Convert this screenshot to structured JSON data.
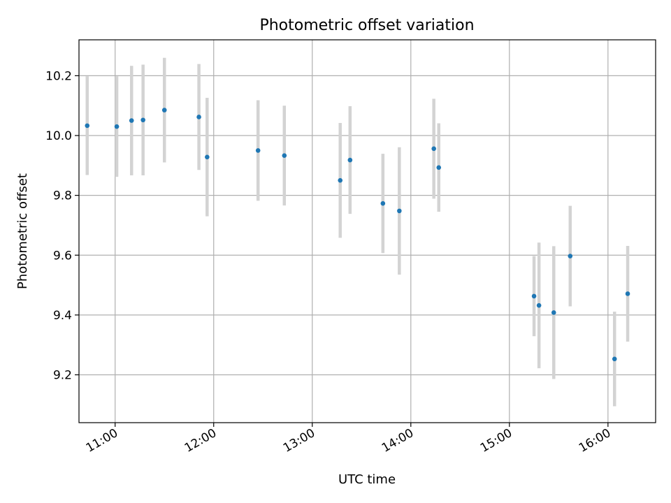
{
  "chart_data": {
    "type": "scatter",
    "title": "Photometric offset variation",
    "xlabel": "UTC time",
    "ylabel": "Photometric offset",
    "x_tick_labels": [
      "11:00",
      "12:00",
      "13:00",
      "14:00",
      "15:00",
      "16:00"
    ],
    "y_tick_labels": [
      "9.2",
      "9.4",
      "9.6",
      "9.8",
      "10.0",
      "10.2"
    ],
    "xlim": [
      "10:38",
      "16:29"
    ],
    "ylim": [
      9.04,
      10.32
    ],
    "grid": true,
    "marker_color": "#1f77b4",
    "errorbar_color": "#d3d3d3",
    "grid_color": "#b0b0b0",
    "points": [
      {
        "t": "10:43",
        "y": 10.033,
        "err": 0.165
      },
      {
        "t": "11:01",
        "y": 10.03,
        "err": 0.168
      },
      {
        "t": "11:10",
        "y": 10.05,
        "err": 0.183
      },
      {
        "t": "11:17",
        "y": 10.052,
        "err": 0.185
      },
      {
        "t": "11:30",
        "y": 10.085,
        "err": 0.175
      },
      {
        "t": "11:51",
        "y": 10.062,
        "err": 0.177
      },
      {
        "t": "11:56",
        "y": 9.928,
        "err": 0.198
      },
      {
        "t": "12:27",
        "y": 9.95,
        "err": 0.168
      },
      {
        "t": "12:43",
        "y": 9.933,
        "err": 0.167
      },
      {
        "t": "13:17",
        "y": 9.85,
        "err": 0.192
      },
      {
        "t": "13:23",
        "y": 9.918,
        "err": 0.18
      },
      {
        "t": "13:43",
        "y": 9.773,
        "err": 0.166
      },
      {
        "t": "13:53",
        "y": 9.748,
        "err": 0.213
      },
      {
        "t": "14:14",
        "y": 9.956,
        "err": 0.167
      },
      {
        "t": "14:17",
        "y": 9.893,
        "err": 0.148
      },
      {
        "t": "15:15",
        "y": 9.463,
        "err": 0.134
      },
      {
        "t": "15:18",
        "y": 9.432,
        "err": 0.21
      },
      {
        "t": "15:27",
        "y": 9.408,
        "err": 0.222
      },
      {
        "t": "15:37",
        "y": 9.597,
        "err": 0.168
      },
      {
        "t": "16:04",
        "y": 9.253,
        "err": 0.158
      },
      {
        "t": "16:12",
        "y": 9.471,
        "err": 0.16
      }
    ]
  }
}
